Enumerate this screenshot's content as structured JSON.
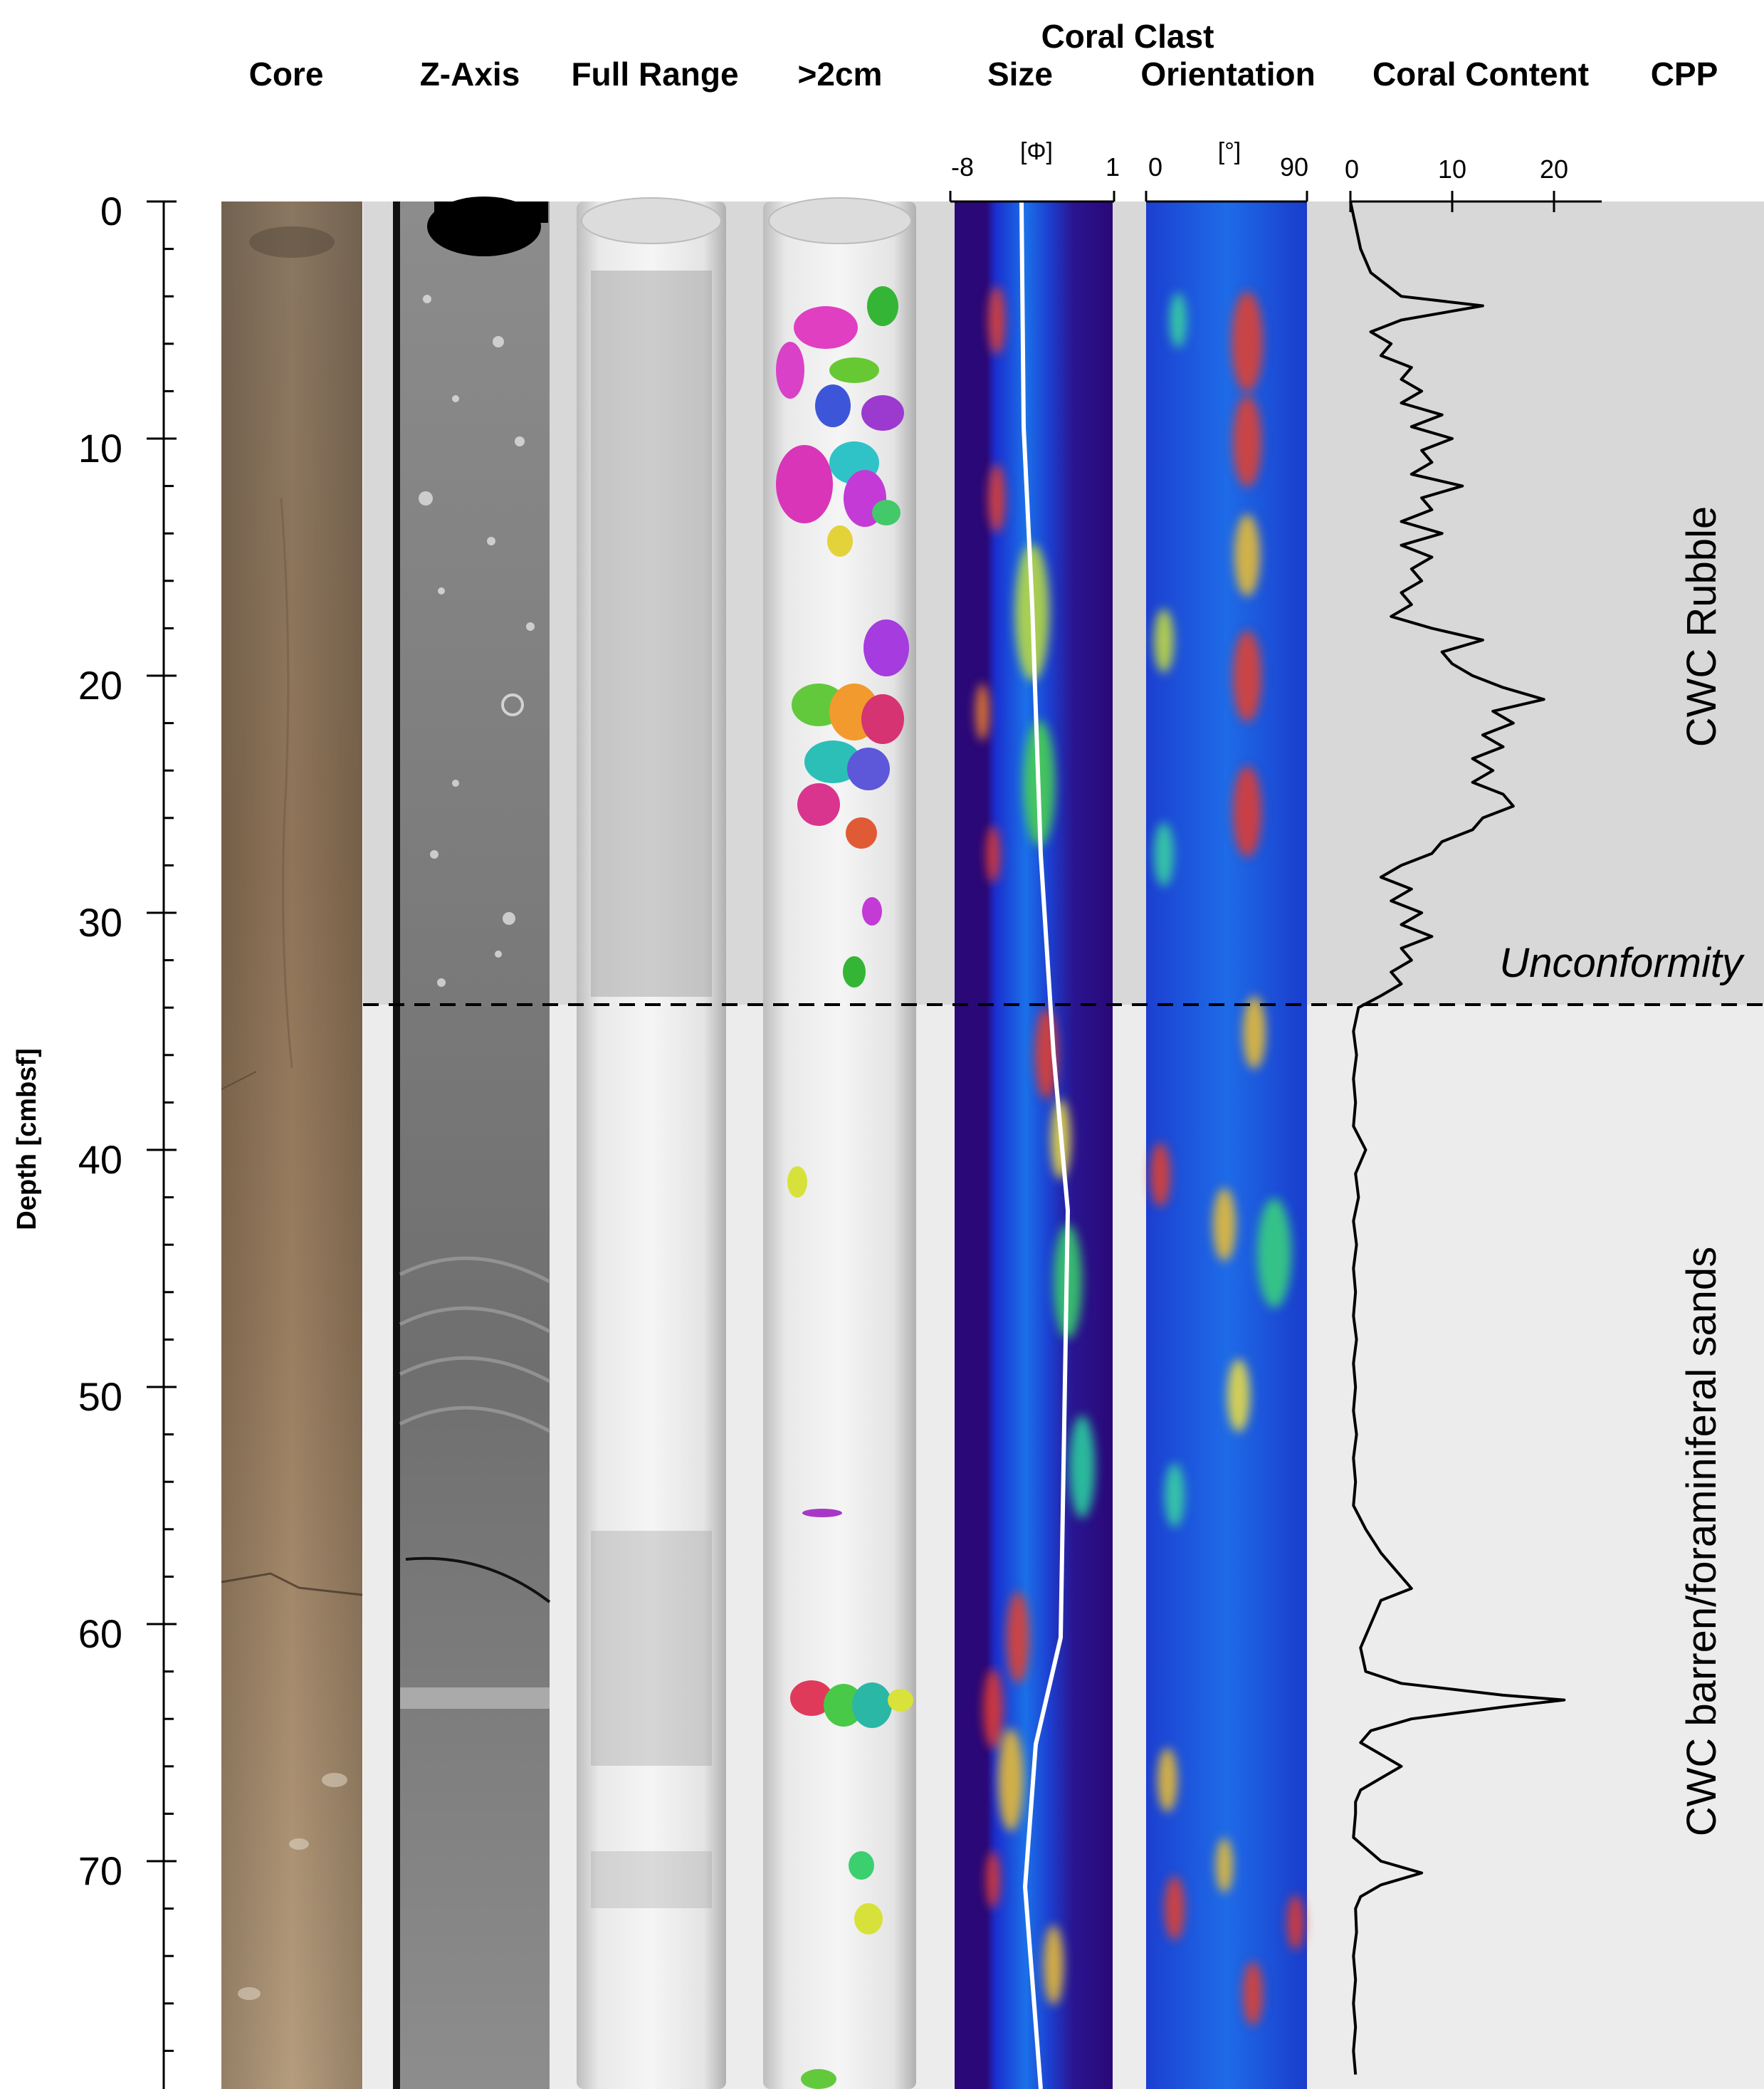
{
  "headers": {
    "core": "Core",
    "z_axis": "Z-Axis",
    "full_range": "Full Range",
    "gt2cm": ">2cm",
    "coral_clast": "Coral Clast",
    "size": "Size",
    "orientation": "Orientation",
    "coral_content": "Coral Content",
    "cpp": "CPP"
  },
  "depth_axis": {
    "label": "Depth [cmbsf]",
    "ticks": [
      "0",
      "10",
      "20",
      "30",
      "40",
      "50",
      "60",
      "70"
    ]
  },
  "size_axis": {
    "unit": "[Φ]",
    "min_label": "-8",
    "max_label": "1"
  },
  "orientation_axis": {
    "unit": "[°]",
    "min_label": "0",
    "max_label": "90"
  },
  "content_axis": {
    "ticks": [
      "0",
      "10",
      "20"
    ]
  },
  "units": {
    "upper": "CWC Rubble",
    "lower": "CWC barren/foraminiferal sands",
    "boundary": "Unconformity",
    "boundary_depth": 33.5
  },
  "colors": {
    "upper_unit_bg": "#d8d8d8",
    "lower_unit_bg": "#ececec",
    "heatmap_bg": "#2a0878",
    "curve": "#000000",
    "size_mean_line": "#ffffff"
  },
  "chart_data": {
    "type": "line",
    "title": "Coral Content",
    "xlabel": "",
    "ylabel": "Depth [cmbsf]",
    "xlim": [
      0,
      25
    ],
    "ylim": [
      0,
      79
    ],
    "series": [
      {
        "depth": [
          0,
          1,
          2,
          3,
          3.5,
          4,
          4.4,
          5,
          5.5,
          6,
          6.5,
          7,
          7.5,
          8,
          8.5,
          9,
          9.5,
          10,
          10.5,
          11,
          11.5,
          12,
          12.5,
          13,
          13.5,
          14,
          14.5,
          15,
          15.5,
          16,
          16.5,
          17,
          17.5,
          18,
          18.5,
          19,
          19.5,
          20,
          20.5,
          21,
          21.5,
          22,
          22.5,
          23,
          23.5,
          24,
          24.5,
          25,
          25.5,
          26,
          26.5,
          27,
          27.5,
          28,
          28.5,
          29,
          29.5,
          30,
          30.5,
          31,
          31.5,
          32,
          32.5,
          33,
          33.5,
          34,
          35,
          36,
          37,
          38,
          39,
          40,
          41,
          42,
          43,
          44,
          45,
          46,
          47,
          48,
          49,
          50,
          51,
          52,
          53,
          54,
          55,
          56,
          57,
          57.5,
          58,
          58.5,
          59,
          60,
          61,
          62,
          62.5,
          63,
          63.2,
          63.5,
          64,
          64.5,
          65,
          65.5,
          66,
          66.5,
          67,
          67.5,
          68,
          69,
          70,
          70.5,
          71,
          71.5,
          72,
          73,
          74,
          75,
          76,
          77,
          78,
          79
        ],
        "values": [
          0,
          0.5,
          1,
          2,
          3.5,
          5,
          13,
          5,
          2,
          4,
          3,
          6,
          5,
          7,
          5,
          9,
          6,
          10,
          7,
          8,
          6,
          11,
          7,
          8,
          5,
          9,
          5,
          8,
          6,
          7,
          5,
          6,
          4,
          8,
          13,
          9,
          10,
          12,
          15,
          19,
          14,
          16,
          13,
          15,
          12,
          14,
          12,
          15,
          16,
          13,
          12,
          9,
          8,
          5,
          3,
          6,
          4,
          7,
          5,
          8,
          5,
          6,
          4,
          5,
          3,
          0.8,
          0.3,
          0.6,
          0.3,
          0.5,
          0.3,
          1.5,
          0.5,
          0.8,
          0.3,
          0.6,
          0.3,
          0.5,
          0.3,
          0.6,
          0.3,
          0.5,
          0.3,
          0.6,
          0.3,
          0.5,
          0.3,
          1.5,
          3,
          4,
          5,
          6,
          3,
          2,
          1,
          1.5,
          5,
          15,
          21,
          15,
          6,
          2,
          1,
          3,
          5,
          3,
          1,
          0.5,
          0.5,
          0.3,
          3,
          7,
          3,
          1,
          0.5,
          0.6,
          0.3,
          0.5,
          0.3,
          0.5,
          0.3,
          0.5
        ]
      }
    ]
  }
}
